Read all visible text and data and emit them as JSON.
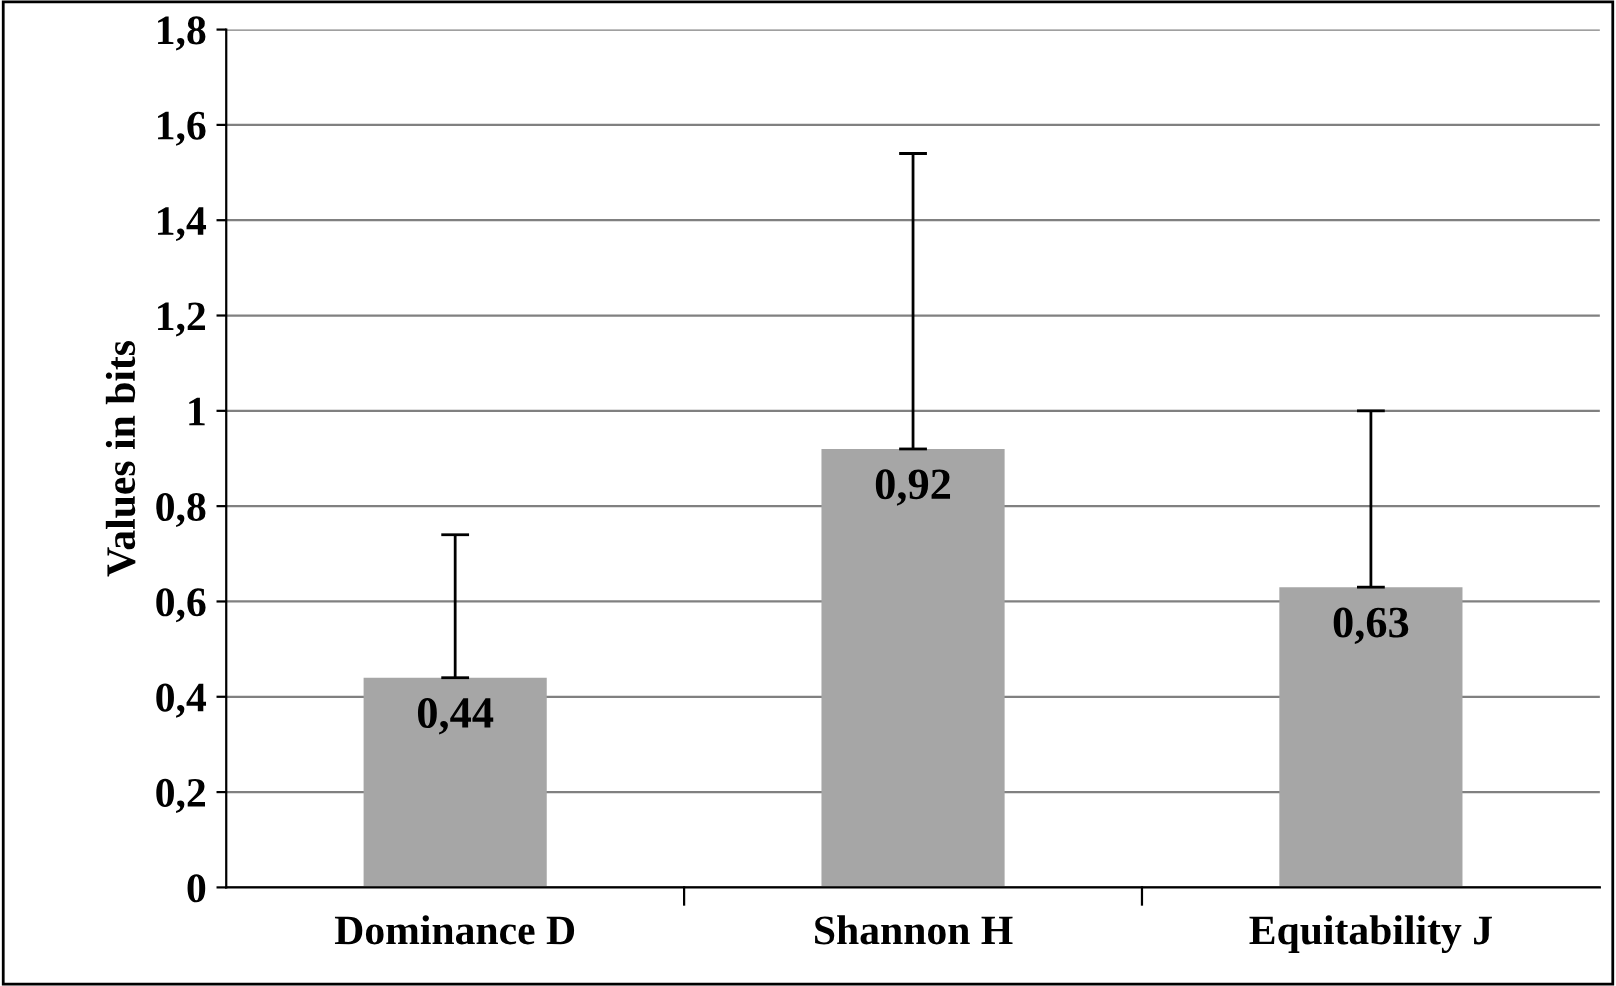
{
  "chart_data": {
    "type": "bar",
    "ylabel": "Values in bits",
    "categories": [
      "Dominance D",
      "Shannon H",
      "Equitability J"
    ],
    "values": [
      0.44,
      0.92,
      0.63
    ],
    "errors": [
      [
        0.44,
        0.74
      ],
      [
        0.92,
        1.54
      ],
      [
        0.63,
        1.0
      ]
    ],
    "color": "#a6a6a6",
    "ylim": [
      0,
      1.8
    ],
    "yticks": [
      0,
      {
        "value": 0.2,
        "label": "0,2"
      },
      {
        "value": 0.4,
        "label": "0,4"
      },
      {
        "value": 0.6,
        "label": "0,6"
      },
      {
        "value": 0.8,
        "label": "0,8"
      },
      1,
      {
        "value": 1.2,
        "label": "1,2"
      },
      {
        "value": 1.4,
        "label": "1,4"
      },
      {
        "value": 1.6,
        "label": "1,6"
      },
      {
        "value": 1.8,
        "label": "1,8"
      }
    ],
    "value_labels": [
      "0,44",
      "0,92",
      "0,63"
    ],
    "grid": "y",
    "legend": false
  }
}
